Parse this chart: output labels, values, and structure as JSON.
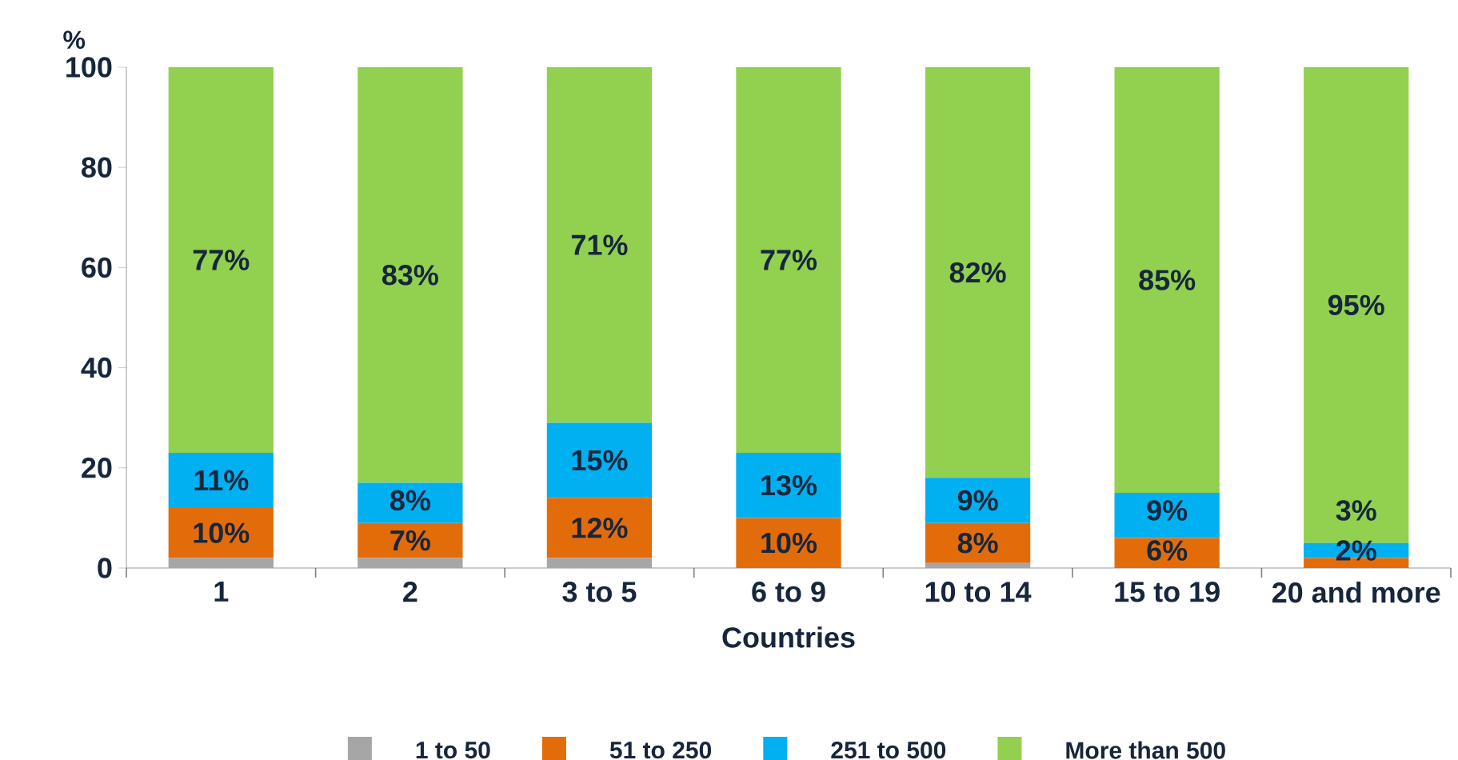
{
  "chart_data": {
    "type": "bar",
    "stacked": true,
    "xlabel": "Countries",
    "ylabel": "%",
    "categories": [
      "1",
      "2",
      "3 to 5",
      "6 to 9",
      "10 to 14",
      "15 to 19",
      "20 and more"
    ],
    "series": [
      {
        "name": "1 to 50",
        "color": "#a6a6a6",
        "values": [
          2,
          2,
          2,
          0,
          1,
          0,
          0
        ]
      },
      {
        "name": "51 to 250",
        "color": "#e36c0a",
        "values": [
          10,
          7,
          12,
          10,
          8,
          6,
          2
        ],
        "value_labels": [
          "10%",
          "7%",
          "12%",
          "10%",
          "8%",
          "6%",
          "2%"
        ]
      },
      {
        "name": "251 to 500",
        "color": "#00b0f0",
        "values": [
          11,
          8,
          15,
          13,
          9,
          9,
          3
        ],
        "value_labels": [
          "11%",
          "8%",
          "15%",
          "13%",
          "9%",
          "9%",
          "3%"
        ]
      },
      {
        "name": "More than 500",
        "color": "#92d050",
        "values": [
          77,
          83,
          71,
          77,
          82,
          85,
          95
        ],
        "value_labels": [
          "77%",
          "83%",
          "71%",
          "77%",
          "82%",
          "85%",
          "95%"
        ]
      }
    ],
    "ylim": [
      0,
      100
    ],
    "yticks": [
      0,
      20,
      40,
      60,
      80,
      100
    ],
    "grid": false,
    "legend": "bottom"
  }
}
